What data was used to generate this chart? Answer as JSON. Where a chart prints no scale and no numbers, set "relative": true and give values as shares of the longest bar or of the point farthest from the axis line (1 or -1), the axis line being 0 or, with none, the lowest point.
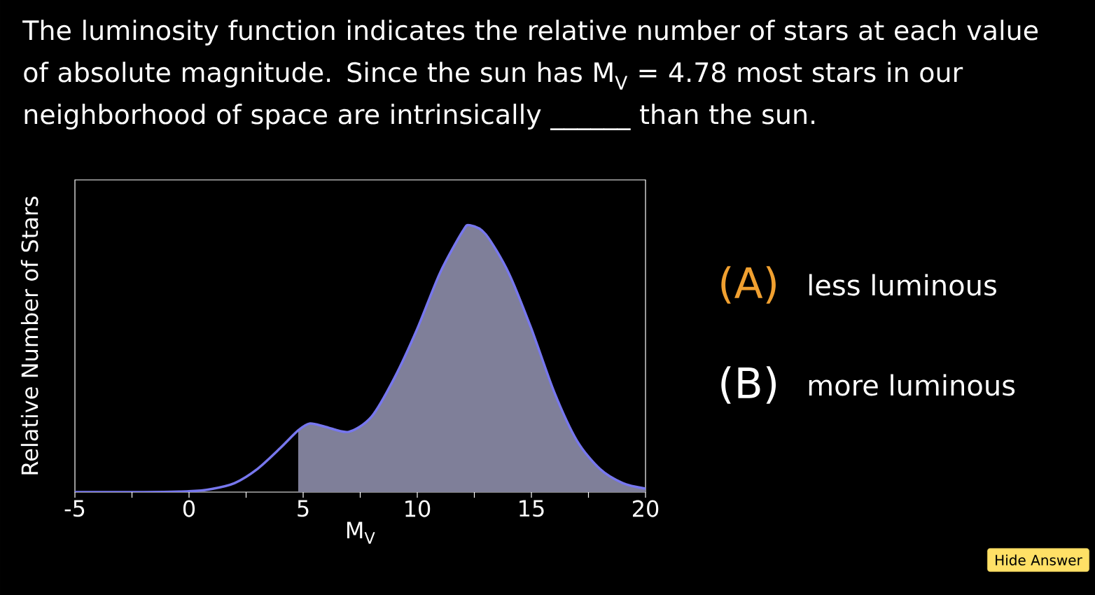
{
  "chart_data": {
    "type": "line",
    "title": "The luminosity function indicates the relative number of stars at each value of absolute magnitude. Since the sun has M$_{V}$ = 4.78 most stars in our neighborhood of space are intrinsically ______ than the sun.",
    "xlabel": "M$_{V}$",
    "ylabel": "Relative Number of Stars",
    "relative": true,
    "xlim": [
      -5,
      20
    ],
    "xticks": [
      -5,
      {
        "value": -2.5,
        "label": null
      },
      0,
      {
        "value": 2.5,
        "label": null
      },
      5,
      {
        "value": 7.5,
        "label": null
      },
      10,
      {
        "value": 12.5,
        "label": null
      },
      15,
      {
        "value": 17.5,
        "label": null
      },
      20
    ],
    "series": [
      {
        "type": "area",
        "color": "#7f7f99",
        "x": [
          4.78,
          5.3,
          6,
          7,
          8,
          9,
          10,
          11,
          12,
          12.3,
          13,
          14,
          15,
          16,
          17,
          18,
          19,
          20
        ],
        "values": [
          0.231,
          0.257,
          0.244,
          0.226,
          0.283,
          0.428,
          0.612,
          0.822,
          0.979,
          1,
          0.966,
          0.822,
          0.612,
          0.375,
          0.192,
          0.087,
          0.034,
          0.013
        ]
      },
      {
        "color": "#7777ee",
        "x": [
          -5,
          -2,
          0,
          1,
          2,
          3,
          4,
          4.78,
          5.3,
          6,
          7,
          8,
          9,
          10,
          11,
          12,
          12.3,
          13,
          14,
          15,
          16,
          17,
          18,
          19,
          20
        ],
        "values": [
          0,
          0,
          0.003,
          0.012,
          0.034,
          0.087,
          0.165,
          0.231,
          0.257,
          0.244,
          0.226,
          0.283,
          0.428,
          0.612,
          0.822,
          0.979,
          1,
          0.966,
          0.822,
          0.612,
          0.375,
          0.192,
          0.087,
          0.034,
          0.013
        ]
      }
    ],
    "annotations": [
      "(A)",
      "less luminous",
      "(B)",
      "more luminous",
      "Hide Answer"
    ]
  }
}
